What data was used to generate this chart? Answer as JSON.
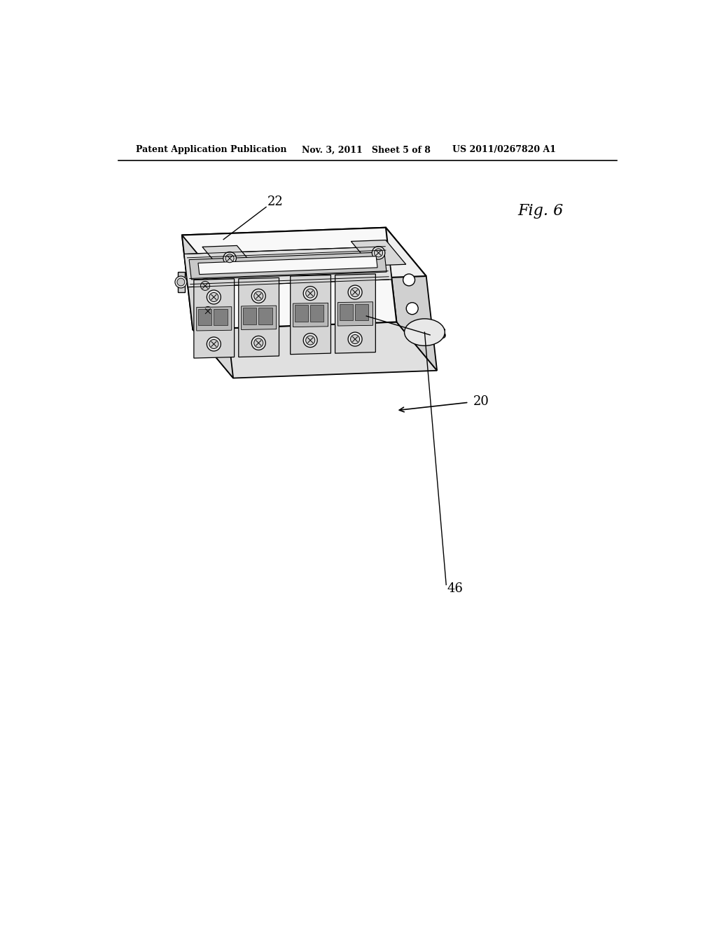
{
  "background_color": "#ffffff",
  "header_left": "Patent Application Publication",
  "header_center": "Nov. 3, 2011   Sheet 5 of 8",
  "header_right": "US 2011/0267820 A1",
  "fig_label": "Fig. 6",
  "lc": "#000000"
}
